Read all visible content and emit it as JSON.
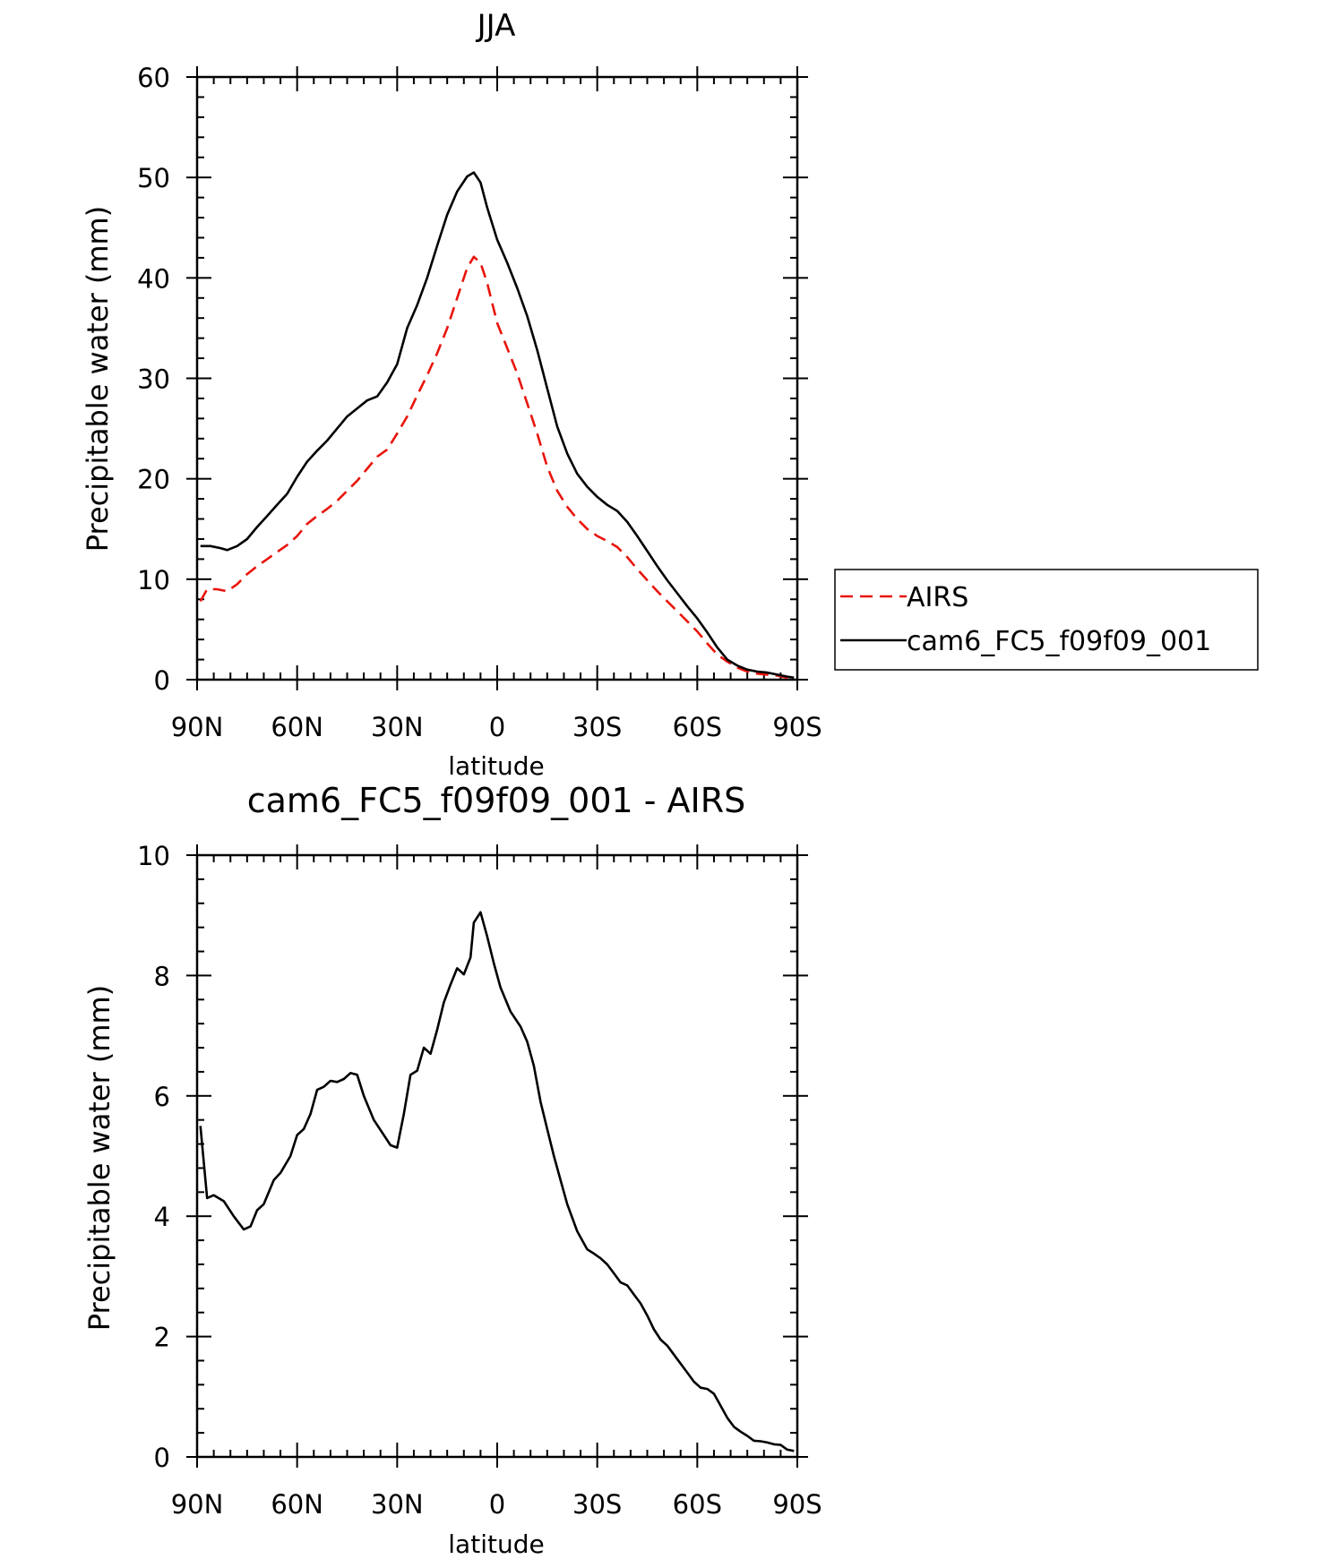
{
  "chart_data": [
    {
      "type": "line",
      "title": "JJA",
      "xlabel": "latitude",
      "ylabel": "Precipitable water (mm)",
      "xlim": [
        -90,
        90
      ],
      "ylim": [
        0,
        60
      ],
      "x_ticks": [
        -90,
        -60,
        -30,
        0,
        30,
        60,
        90
      ],
      "x_tick_labels": [
        "90N",
        "60N",
        "30N",
        "0",
        "30S",
        "60S",
        "90S"
      ],
      "y_ticks": [
        0,
        10,
        20,
        30,
        40,
        50,
        60
      ],
      "y_tick_labels": [
        "0",
        "10",
        "20",
        "30",
        "40",
        "50",
        "60"
      ],
      "legend": {
        "position": "right"
      },
      "series": [
        {
          "name": "AIRS",
          "color": "#e8140c",
          "dash": "dashed",
          "points": [
            [
              -89,
              7.8
            ],
            [
              -87,
              9.0
            ],
            [
              -84,
              9.0
            ],
            [
              -81,
              8.8
            ],
            [
              -78,
              9.5
            ],
            [
              -75,
              10.5
            ],
            [
              -72,
              11.3
            ],
            [
              -69,
              12.0
            ],
            [
              -66,
              12.7
            ],
            [
              -63,
              13.4
            ],
            [
              -60,
              14.3
            ],
            [
              -57,
              15.5
            ],
            [
              -54,
              16.3
            ],
            [
              -51,
              17.0
            ],
            [
              -48,
              17.8
            ],
            [
              -45,
              18.8
            ],
            [
              -42,
              19.8
            ],
            [
              -39,
              21.0
            ],
            [
              -36,
              22.2
            ],
            [
              -33,
              22.9
            ],
            [
              -30,
              24.5
            ],
            [
              -27,
              26.2
            ],
            [
              -24,
              28.3
            ],
            [
              -21,
              30.3
            ],
            [
              -18,
              32.5
            ],
            [
              -15,
              35.0
            ],
            [
              -12,
              38.0
            ],
            [
              -9,
              41.0
            ],
            [
              -7,
              42.1
            ],
            [
              -5,
              41.5
            ],
            [
              -3,
              39.5
            ],
            [
              0,
              35.5
            ],
            [
              3,
              33.0
            ],
            [
              6,
              30.5
            ],
            [
              9,
              27.5
            ],
            [
              12,
              24.5
            ],
            [
              15,
              21.2
            ],
            [
              18,
              18.8
            ],
            [
              21,
              17.2
            ],
            [
              24,
              16.0
            ],
            [
              27,
              15.0
            ],
            [
              30,
              14.3
            ],
            [
              33,
              13.8
            ],
            [
              36,
              13.2
            ],
            [
              39,
              12.2
            ],
            [
              42,
              11.0
            ],
            [
              45,
              9.9
            ],
            [
              48,
              8.8
            ],
            [
              51,
              7.8
            ],
            [
              54,
              6.8
            ],
            [
              57,
              5.8
            ],
            [
              60,
              4.8
            ],
            [
              63,
              3.6
            ],
            [
              66,
              2.5
            ],
            [
              69,
              1.8
            ],
            [
              72,
              1.2
            ],
            [
              75,
              0.8
            ],
            [
              78,
              0.6
            ],
            [
              81,
              0.5
            ],
            [
              84,
              0.4
            ],
            [
              87,
              0.2
            ],
            [
              89,
              0.1
            ]
          ]
        },
        {
          "name": "cam6_FC5_f09f09_001",
          "color": "#000000",
          "dash": "solid",
          "points": [
            [
              -89,
              13.3
            ],
            [
              -86,
              13.3
            ],
            [
              -83,
              13.1
            ],
            [
              -81,
              12.9
            ],
            [
              -78,
              13.3
            ],
            [
              -75,
              14.0
            ],
            [
              -72,
              15.2
            ],
            [
              -69,
              16.3
            ],
            [
              -66,
              17.4
            ],
            [
              -63,
              18.5
            ],
            [
              -60,
              20.2
            ],
            [
              -57,
              21.7
            ],
            [
              -54,
              22.8
            ],
            [
              -51,
              23.8
            ],
            [
              -48,
              25.0
            ],
            [
              -45,
              26.2
            ],
            [
              -42,
              27.0
            ],
            [
              -39,
              27.8
            ],
            [
              -36,
              28.2
            ],
            [
              -33,
              29.6
            ],
            [
              -30,
              31.4
            ],
            [
              -27,
              35.0
            ],
            [
              -24,
              37.3
            ],
            [
              -21,
              40.0
            ],
            [
              -18,
              43.2
            ],
            [
              -15,
              46.3
            ],
            [
              -12,
              48.6
            ],
            [
              -9,
              50.1
            ],
            [
              -7,
              50.5
            ],
            [
              -5,
              49.5
            ],
            [
              -3,
              47.0
            ],
            [
              0,
              43.8
            ],
            [
              3,
              41.5
            ],
            [
              6,
              39.0
            ],
            [
              9,
              36.2
            ],
            [
              12,
              32.8
            ],
            [
              15,
              29.0
            ],
            [
              18,
              25.2
            ],
            [
              21,
              22.5
            ],
            [
              24,
              20.5
            ],
            [
              27,
              19.2
            ],
            [
              30,
              18.2
            ],
            [
              33,
              17.4
            ],
            [
              36,
              16.8
            ],
            [
              39,
              15.7
            ],
            [
              42,
              14.3
            ],
            [
              45,
              12.8
            ],
            [
              48,
              11.3
            ],
            [
              51,
              9.9
            ],
            [
              54,
              8.6
            ],
            [
              57,
              7.3
            ],
            [
              60,
              6.1
            ],
            [
              63,
              4.7
            ],
            [
              66,
              3.2
            ],
            [
              69,
              2.0
            ],
            [
              72,
              1.4
            ],
            [
              75,
              1.0
            ],
            [
              78,
              0.8
            ],
            [
              81,
              0.7
            ],
            [
              84,
              0.5
            ],
            [
              87,
              0.3
            ],
            [
              89,
              0.2
            ]
          ]
        }
      ]
    },
    {
      "type": "line",
      "title": "cam6_FC5_f09f09_001 - AIRS",
      "xlabel": "latitude",
      "ylabel": "Precipitable water (mm)",
      "xlim": [
        -90,
        90
      ],
      "ylim": [
        0,
        10
      ],
      "x_ticks": [
        -90,
        -60,
        -30,
        0,
        30,
        60,
        90
      ],
      "x_tick_labels": [
        "90N",
        "60N",
        "30N",
        "0",
        "30S",
        "60S",
        "90S"
      ],
      "y_ticks": [
        0,
        2,
        4,
        6,
        8,
        10
      ],
      "y_tick_labels": [
        "0",
        "2",
        "4",
        "6",
        "8",
        "10"
      ],
      "series": [
        {
          "color": "#000000",
          "dash": "solid",
          "points": [
            [
              -89,
              5.5
            ],
            [
              -87,
              4.3
            ],
            [
              -85,
              4.35
            ],
            [
              -82,
              4.25
            ],
            [
              -79,
              4.0
            ],
            [
              -76,
              3.78
            ],
            [
              -74,
              3.83
            ],
            [
              -72,
              4.1
            ],
            [
              -70,
              4.2
            ],
            [
              -67,
              4.6
            ],
            [
              -65,
              4.72
            ],
            [
              -62,
              5.0
            ],
            [
              -60,
              5.35
            ],
            [
              -58,
              5.45
            ],
            [
              -56,
              5.7
            ],
            [
              -54,
              6.1
            ],
            [
              -52,
              6.15
            ],
            [
              -50,
              6.25
            ],
            [
              -48,
              6.23
            ],
            [
              -46,
              6.28
            ],
            [
              -44,
              6.38
            ],
            [
              -42,
              6.35
            ],
            [
              -40,
              6.0
            ],
            [
              -37,
              5.6
            ],
            [
              -34,
              5.35
            ],
            [
              -32,
              5.18
            ],
            [
              -30,
              5.14
            ],
            [
              -28,
              5.7
            ],
            [
              -26,
              6.35
            ],
            [
              -24,
              6.42
            ],
            [
              -22,
              6.8
            ],
            [
              -20,
              6.7
            ],
            [
              -18,
              7.1
            ],
            [
              -16,
              7.55
            ],
            [
              -14,
              7.85
            ],
            [
              -12,
              8.12
            ],
            [
              -10,
              8.02
            ],
            [
              -8,
              8.3
            ],
            [
              -7,
              8.88
            ],
            [
              -5,
              9.05
            ],
            [
              -3,
              8.65
            ],
            [
              -1,
              8.2
            ],
            [
              1,
              7.8
            ],
            [
              4,
              7.4
            ],
            [
              7,
              7.15
            ],
            [
              9,
              6.9
            ],
            [
              11,
              6.5
            ],
            [
              13,
              5.9
            ],
            [
              15,
              5.45
            ],
            [
              17,
              5.0
            ],
            [
              19,
              4.6
            ],
            [
              21,
              4.2
            ],
            [
              24,
              3.75
            ],
            [
              27,
              3.45
            ],
            [
              29,
              3.38
            ],
            [
              31,
              3.3
            ],
            [
              33,
              3.2
            ],
            [
              35,
              3.05
            ],
            [
              37,
              2.9
            ],
            [
              39,
              2.85
            ],
            [
              41,
              2.7
            ],
            [
              43,
              2.55
            ],
            [
              45,
              2.35
            ],
            [
              47,
              2.12
            ],
            [
              49,
              1.95
            ],
            [
              51,
              1.85
            ],
            [
              53,
              1.7
            ],
            [
              55,
              1.55
            ],
            [
              57,
              1.4
            ],
            [
              59,
              1.25
            ],
            [
              61,
              1.15
            ],
            [
              63,
              1.13
            ],
            [
              65,
              1.05
            ],
            [
              67,
              0.85
            ],
            [
              69,
              0.65
            ],
            [
              71,
              0.5
            ],
            [
              73,
              0.42
            ],
            [
              75,
              0.35
            ],
            [
              77,
              0.27
            ],
            [
              79,
              0.26
            ],
            [
              81,
              0.24
            ],
            [
              83,
              0.21
            ],
            [
              85,
              0.2
            ],
            [
              87,
              0.12
            ],
            [
              89,
              0.1
            ]
          ]
        }
      ]
    }
  ]
}
